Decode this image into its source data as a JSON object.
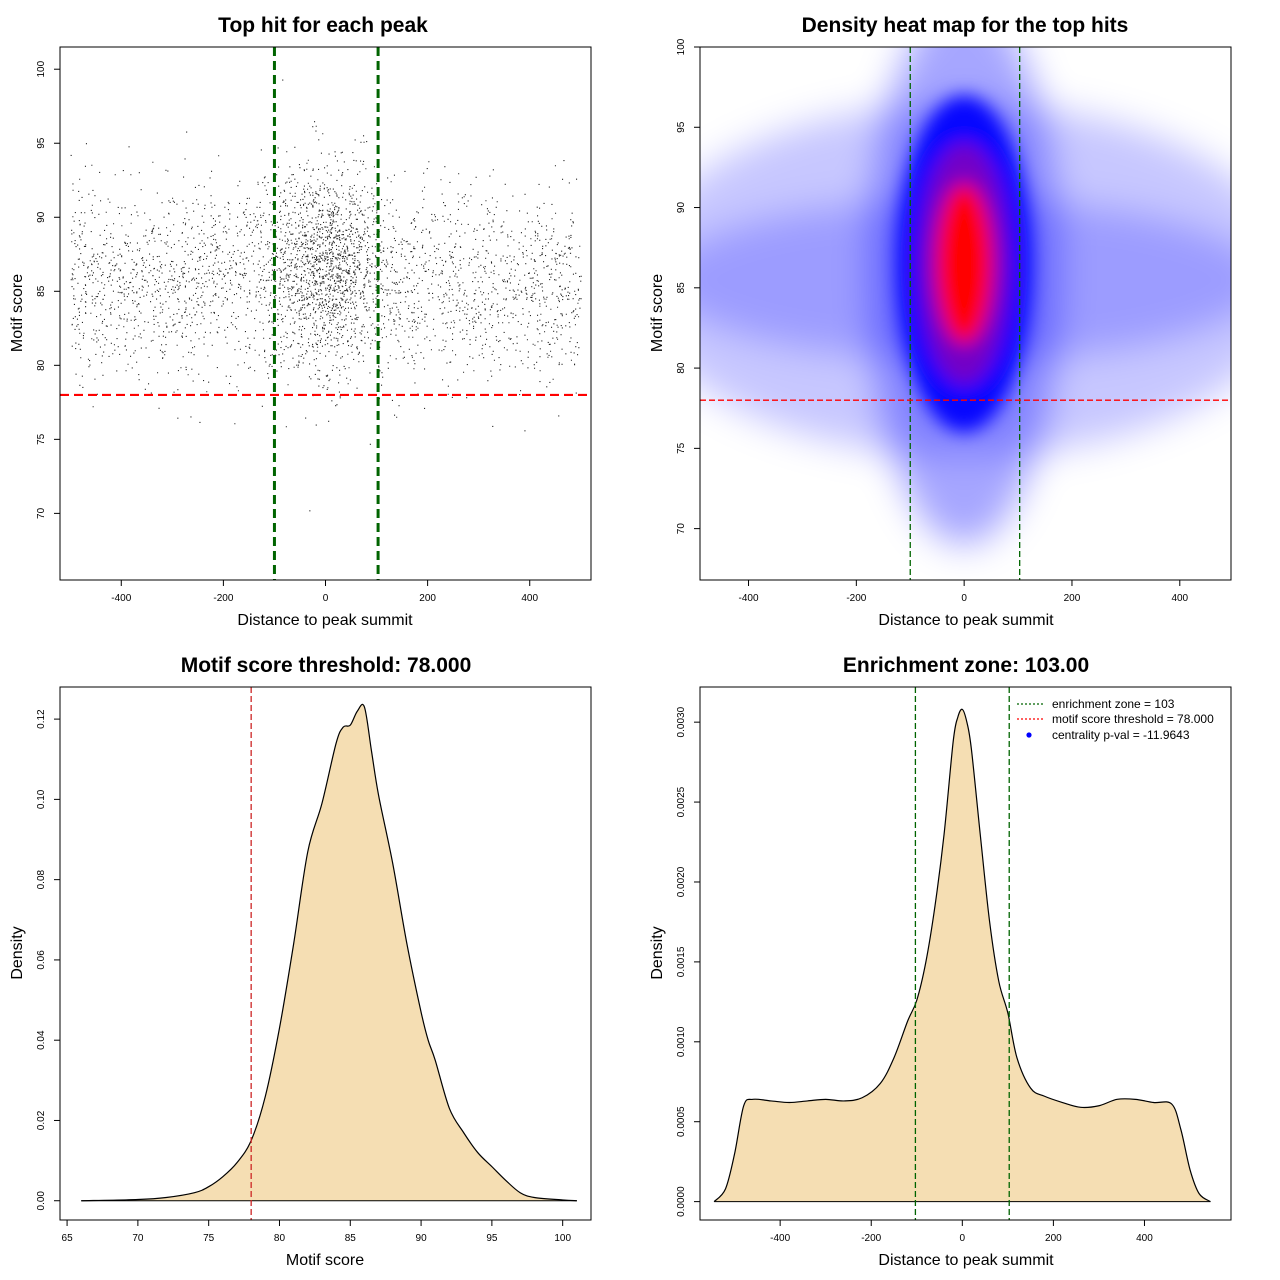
{
  "chart_data": [
    {
      "id": "top-hit",
      "type": "scatter",
      "title": "Top hit for each peak",
      "xlabel": "Distance to peak summit",
      "ylabel": "Motif score",
      "xlim": [
        -520,
        520
      ],
      "ylim": [
        65.5,
        101.5
      ],
      "xticks": [
        -400,
        -200,
        0,
        200,
        400
      ],
      "yticks": [
        70,
        75,
        80,
        85,
        90,
        95,
        100
      ],
      "vlines": [
        -100,
        103
      ],
      "hline": 78,
      "colors": {
        "points": "#000000",
        "vlines": "#006400",
        "hline": "#ff0000"
      },
      "points_summary": {
        "x_range": [
          -500,
          500
        ],
        "score_center": 85.5,
        "score_spread": 3.2,
        "central_score_center": 87,
        "central_score_spread": 3.5,
        "central_zone": [
          -100,
          100
        ],
        "approx_point_count": 20000
      }
    },
    {
      "id": "density-heatmap",
      "type": "heatmap",
      "title": "Density heat map for the top hits",
      "xlabel": "Distance to peak summit",
      "ylabel": "Motif score",
      "xlim": [
        -490,
        495
      ],
      "ylim": [
        66.8,
        100
      ],
      "xticks": [
        -400,
        -200,
        0,
        200,
        400
      ],
      "yticks": [
        70,
        75,
        80,
        85,
        90,
        95,
        100
      ],
      "vlines": [
        -100,
        103
      ],
      "hline": 78,
      "peak": {
        "x": 0,
        "y": 86.5
      },
      "colors": {
        "low": "#ffffff",
        "mid": "#0000ff",
        "high": "#ff0000",
        "vlines": "#006400",
        "hline": "#ff0000"
      }
    },
    {
      "id": "score-density",
      "type": "area",
      "title": "Motif score threshold: 78.000",
      "xlabel": "Motif score",
      "ylabel": "Density",
      "xlim": [
        64.5,
        102
      ],
      "ylim": [
        -0.0048,
        0.128
      ],
      "xticks": [
        65,
        70,
        75,
        80,
        85,
        90,
        95,
        100
      ],
      "yticks": [
        0.0,
        0.02,
        0.04,
        0.06,
        0.08,
        0.1,
        0.12
      ],
      "ytick_labels": [
        "0.00",
        "0.02",
        "0.04",
        "0.06",
        "0.08",
        "0.10",
        "0.12"
      ],
      "vline": 78,
      "colors": {
        "fill": "#f5deb3",
        "line": "#000000",
        "vline": "#cd2626"
      },
      "x": [
        66,
        70,
        72,
        74,
        75,
        76,
        77,
        78,
        79,
        80,
        81,
        82,
        83,
        84,
        84.5,
        85,
        85.5,
        86,
        86.5,
        87,
        88,
        89,
        90,
        90.5,
        91,
        92,
        93,
        94,
        95,
        96,
        97,
        98,
        100,
        101
      ],
      "y": [
        0,
        0.0003,
        0.0008,
        0.002,
        0.0035,
        0.006,
        0.0095,
        0.015,
        0.026,
        0.043,
        0.064,
        0.087,
        0.099,
        0.114,
        0.118,
        0.1185,
        0.122,
        0.123,
        0.112,
        0.101,
        0.084,
        0.064,
        0.047,
        0.04,
        0.035,
        0.023,
        0.017,
        0.012,
        0.0085,
        0.005,
        0.002,
        0.0008,
        0.0002,
        0
      ]
    },
    {
      "id": "distance-density",
      "type": "area",
      "title": "Enrichment zone: 103.00",
      "xlabel": "Distance to peak summit",
      "ylabel": "Density",
      "xlim": [
        -576,
        590
      ],
      "ylim": [
        -0.000115,
        0.00322
      ],
      "xticks": [
        -400,
        -200,
        0,
        200,
        400
      ],
      "yticks": [
        0,
        0.0005,
        0.001,
        0.0015,
        0.002,
        0.0025,
        0.003
      ],
      "ytick_labels": [
        "0.0000",
        "0.0005",
        "0.0010",
        "0.0015",
        "0.0020",
        "0.0025",
        "0.0030"
      ],
      "vlines": [
        -103,
        103
      ],
      "colors": {
        "fill": "#f5deb3",
        "line": "#000000",
        "vlines": "#006400",
        "legend_zone": "#006400",
        "legend_threshold": "#ff0000",
        "legend_pval": "#0000ff"
      },
      "legend": [
        {
          "label": "enrichment zone = 103",
          "kind": "line"
        },
        {
          "label": "motif score threshold = 78.000",
          "kind": "line"
        },
        {
          "label": "centrality p-val = -11.9643",
          "kind": "point"
        }
      ],
      "x": [
        -545,
        -520,
        -500,
        -480,
        -460,
        -420,
        -380,
        -340,
        -300,
        -260,
        -220,
        -180,
        -150,
        -120,
        -100,
        -80,
        -60,
        -40,
        -20,
        -10,
        0,
        10,
        20,
        40,
        60,
        80,
        100,
        120,
        150,
        180,
        220,
        260,
        300,
        340,
        380,
        420,
        460,
        480,
        500,
        520,
        545
      ],
      "y": [
        0,
        8e-05,
        0.0003,
        0.0006,
        0.00064,
        0.00063,
        0.00062,
        0.00063,
        0.00064,
        0.00063,
        0.00065,
        0.00074,
        0.0009,
        0.00113,
        0.00126,
        0.0015,
        0.00185,
        0.0023,
        0.00288,
        0.00303,
        0.00308,
        0.003,
        0.00283,
        0.00228,
        0.00175,
        0.00138,
        0.00118,
        0.0009,
        0.00071,
        0.00066,
        0.00062,
        0.00059,
        0.0006,
        0.00064,
        0.00064,
        0.00062,
        0.00061,
        0.00045,
        0.0002,
        5e-05,
        0
      ]
    }
  ]
}
